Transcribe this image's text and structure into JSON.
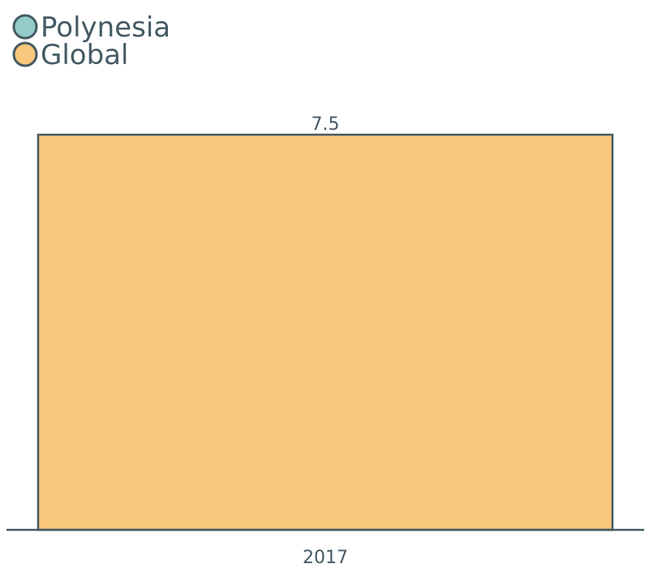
{
  "chart_data": {
    "type": "bar",
    "categories": [
      "2017"
    ],
    "series": [
      {
        "name": "Polynesia",
        "values": [
          null
        ],
        "color": "#93ccc9"
      },
      {
        "name": "Global",
        "values": [
          7.5
        ],
        "color": "#fac87c"
      }
    ],
    "data_labels": [
      "7.5"
    ],
    "ylim": [
      0,
      7.5
    ],
    "grid": false,
    "legend_position": "top-left",
    "outline_color": "#455a64"
  }
}
